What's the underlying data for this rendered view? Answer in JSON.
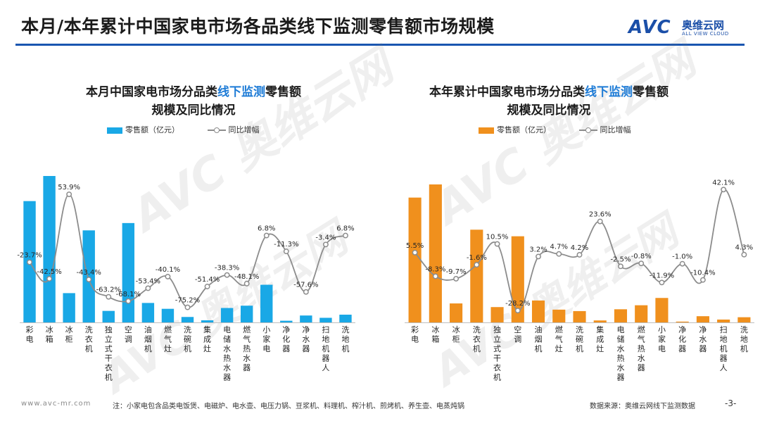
{
  "header": {
    "title": "本月/本年累计中国家电市场各品类线下监测零售额市场规模",
    "logo_mark": "AVC",
    "logo_cn": "奥维云网",
    "logo_en": "ALL VIEW CLOUD"
  },
  "watermark": "AVC 奥维云网",
  "colors": {
    "brand_blue": "#1b4fa8",
    "bar_left": "#19a8e6",
    "bar_right": "#f0901d",
    "line": "#8c8c8c",
    "title_highlight": "#1d7bd6"
  },
  "footer": {
    "url": "www.avc-mr.com",
    "note": "注：小家电包含品类电饭煲、电磁炉、电水壶、电压力锅、豆浆机、料理机、榨汁机、煎烤机、养生壶、电蒸炖锅",
    "source": "数据来源：奥维云网线下监测数据",
    "page": "-3-"
  },
  "chart_data": [
    {
      "type": "bar",
      "title_pre": "本月中国家电市场分品类",
      "title_highlight": "线下监测",
      "title_post": "零售额",
      "title_line2": "规模及同比情况",
      "legend": {
        "bar": "零售额（亿元）",
        "line": "同比增幅"
      },
      "categories": [
        "彩电",
        "冰箱",
        "冰柜",
        "洗衣机",
        "独立式干衣机",
        "空调",
        "油烟机",
        "燃气灶",
        "洗碗机",
        "集成灶",
        "电储水热水器",
        "燃气热水器",
        "小家电",
        "净化器",
        "净水器",
        "扫地机器人",
        "洗地机"
      ],
      "series": [
        {
          "name": "零售额（亿元）",
          "kind": "bar",
          "values": [
            58,
            70,
            14,
            44,
            5.5,
            47.5,
            9.3,
            6.5,
            2.6,
            1,
            6.9,
            8,
            18,
            0.8,
            3.3,
            2.2,
            3.7
          ]
        },
        {
          "name": "同比增幅",
          "kind": "line",
          "values": [
            -23.7,
            -42.5,
            53.9,
            -43.4,
            -63.2,
            -68.1,
            -53.4,
            -40.1,
            -75.2,
            -51.4,
            -38.3,
            -48.1,
            6.8,
            -11.3,
            -57.6,
            -3.4,
            6.8
          ],
          "labels": [
            "-23.7%",
            "-42.5%",
            "53.9%",
            "-43.4%",
            "-63.2%",
            "-68.1%",
            "-53.4%",
            "-40.1%",
            "-75.2%",
            "-51.4%",
            "-38.3%",
            "-48.1%",
            "6.8%",
            "-11.3%",
            "-57.6%",
            "-3.4%",
            "6.8%"
          ]
        }
      ],
      "line_range": [
        -90,
        70
      ]
    },
    {
      "type": "bar",
      "title_pre": "本年累计中国家电市场分品类",
      "title_highlight": "线下监测",
      "title_post": "零售额",
      "title_line2": "规模及同比情况",
      "legend": {
        "bar": "零售额（亿元）",
        "line": "同比增幅"
      },
      "categories": [
        "彩电",
        "冰箱",
        "冰柜",
        "洗衣机",
        "独立式干衣机",
        "空调",
        "油烟机",
        "燃气灶",
        "洗碗机",
        "集成灶",
        "电储水热水器",
        "燃气热水器",
        "小家电",
        "净化器",
        "净水器",
        "扫地机器人",
        "洗地机"
      ],
      "series": [
        {
          "name": "零售额（亿元）",
          "kind": "bar",
          "values": [
            171,
            189,
            26,
            127,
            21,
            118,
            30,
            17.5,
            15.5,
            2.7,
            18,
            23.5,
            33.5,
            1.1,
            8.5,
            3.9,
            7.1
          ]
        },
        {
          "name": "同比增幅",
          "kind": "line",
          "values": [
            5.5,
            -8.3,
            -9.7,
            -1.6,
            10.5,
            -28.2,
            3.2,
            4.7,
            4.2,
            23.6,
            -2.5,
            -0.8,
            -11.9,
            -1.0,
            -10.4,
            42.1,
            4.3
          ],
          "labels": [
            "5.5%",
            "-8.3%",
            "-9.7%",
            "-1.6%",
            "10.5%",
            "-28.2%",
            "3.2%",
            "4.7%",
            "4.2%",
            "23.6%",
            "-2.5%",
            "-0.8%",
            "-11.9%",
            "-1.0%",
            "-10.4%",
            "42.1%",
            "4.3%"
          ]
        }
      ],
      "line_range": [
        -40,
        50
      ]
    }
  ]
}
